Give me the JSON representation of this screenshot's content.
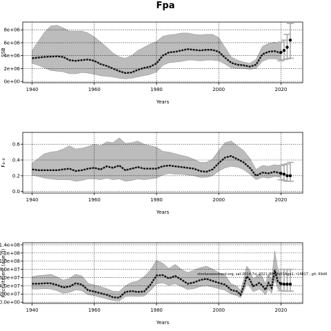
{
  "figure": {
    "title": "Fpa"
  },
  "chart_data": [
    {
      "type": "line",
      "name": "ssb",
      "xlabel": "Years",
      "ylabel": "SSB",
      "xlim": [
        1937,
        2027
      ],
      "ylim": [
        -200000,
        9200000
      ],
      "xticks": [
        1940,
        1960,
        1980,
        2000,
        2020
      ],
      "xtick_labels": [
        "1940",
        "1960",
        "1980",
        "2000",
        "2020"
      ],
      "yticks": [
        0,
        2000000,
        4000000,
        6000000,
        8000000
      ],
      "ytick_labels": [
        "0e+00",
        "2e+06",
        "4e+06",
        "6e+06",
        "8e+06"
      ],
      "grid": true,
      "x": [
        1940,
        1942,
        1944,
        1946,
        1948,
        1950,
        1952,
        1954,
        1956,
        1958,
        1960,
        1962,
        1964,
        1966,
        1968,
        1970,
        1972,
        1974,
        1976,
        1978,
        1980,
        1982,
        1984,
        1986,
        1988,
        1990,
        1992,
        1994,
        1996,
        1998,
        2000,
        2002,
        2004,
        2006,
        2008,
        2010,
        2012,
        2014,
        2016,
        2018,
        2020
      ],
      "y": [
        3600000,
        3700000,
        3800000,
        3850000,
        3900000,
        3800000,
        3300000,
        3200000,
        3300000,
        3400000,
        3200000,
        2700000,
        2400000,
        2000000,
        1600000,
        1300000,
        1400000,
        1800000,
        2100000,
        2300000,
        2800000,
        4000000,
        4500000,
        4600000,
        4800000,
        5000000,
        4900000,
        4800000,
        4900000,
        4900000,
        4600000,
        3700000,
        2900000,
        2600000,
        2500000,
        2300000,
        2600000,
        4200000,
        4600000,
        4700000,
        4400000
      ],
      "lower": [
        2800000,
        2500000,
        2100000,
        1700000,
        1600000,
        1500000,
        1200000,
        1200000,
        1400000,
        1300000,
        1100000,
        900000,
        800000,
        700000,
        500000,
        400000,
        500000,
        700000,
        900000,
        1100000,
        1500000,
        2500000,
        2900000,
        3000000,
        3100000,
        3300000,
        3300000,
        3200000,
        3300000,
        3300000,
        3200000,
        2700000,
        2100000,
        2000000,
        2000000,
        1900000,
        2000000,
        3100000,
        3500000,
        3500000,
        3300000
      ],
      "upper": [
        4800000,
        6200000,
        7600000,
        8600000,
        8700000,
        8300000,
        7800000,
        7800000,
        7800000,
        7500000,
        6900000,
        6100000,
        5300000,
        4400000,
        3800000,
        3600000,
        4000000,
        4800000,
        5300000,
        5800000,
        6200000,
        7000000,
        7200000,
        7300000,
        7500000,
        7500000,
        7300000,
        7200000,
        7300000,
        7300000,
        6800000,
        5300000,
        3800000,
        3300000,
        3000000,
        2800000,
        3400000,
        5400000,
        5900000,
        6100000,
        5800000
      ],
      "points": [
        {
          "x": 2020,
          "y": 4500000,
          "lo": 3200000,
          "hi": 6100000
        },
        {
          "x": 2021,
          "y": 4800000,
          "lo": 3400000,
          "hi": 6400000
        },
        {
          "x": 2022,
          "y": 5300000,
          "lo": 3500000,
          "hi": 7300000
        },
        {
          "x": 2023,
          "y": 6400000,
          "lo": 3600000,
          "hi": 9000000
        }
      ]
    },
    {
      "type": "line",
      "name": "f",
      "xlabel": "Years",
      "ylabel": "F₄₋₈",
      "xlim": [
        1937,
        2027
      ],
      "ylim": [
        -0.02,
        0.75
      ],
      "xticks": [
        1940,
        1960,
        1980,
        2000,
        2020
      ],
      "xtick_labels": [
        "1940",
        "1960",
        "1980",
        "2000",
        "2020"
      ],
      "yticks": [
        0.0,
        0.2,
        0.4,
        0.6
      ],
      "ytick_labels": [
        "0.0",
        "0.2",
        "0.4",
        "0.6"
      ],
      "grid": true,
      "x": [
        1940,
        1942,
        1944,
        1946,
        1948,
        1950,
        1952,
        1954,
        1956,
        1958,
        1960,
        1962,
        1964,
        1966,
        1968,
        1970,
        1972,
        1974,
        1976,
        1978,
        1980,
        1982,
        1984,
        1986,
        1988,
        1990,
        1992,
        1994,
        1996,
        1998,
        2000,
        2002,
        2004,
        2006,
        2008,
        2010,
        2012,
        2014,
        2016,
        2018,
        2020
      ],
      "y": [
        0.28,
        0.27,
        0.27,
        0.27,
        0.27,
        0.28,
        0.29,
        0.26,
        0.27,
        0.29,
        0.3,
        0.28,
        0.32,
        0.3,
        0.33,
        0.27,
        0.29,
        0.31,
        0.29,
        0.29,
        0.29,
        0.32,
        0.33,
        0.32,
        0.31,
        0.3,
        0.29,
        0.26,
        0.25,
        0.28,
        0.36,
        0.43,
        0.45,
        0.41,
        0.37,
        0.3,
        0.2,
        0.24,
        0.23,
        0.25,
        0.23
      ],
      "lower": [
        0.21,
        0.19,
        0.17,
        0.16,
        0.15,
        0.15,
        0.15,
        0.13,
        0.14,
        0.16,
        0.16,
        0.15,
        0.17,
        0.15,
        0.16,
        0.13,
        0.14,
        0.16,
        0.15,
        0.16,
        0.17,
        0.21,
        0.23,
        0.22,
        0.22,
        0.21,
        0.2,
        0.18,
        0.18,
        0.2,
        0.26,
        0.3,
        0.32,
        0.31,
        0.28,
        0.22,
        0.15,
        0.18,
        0.17,
        0.19,
        0.18
      ],
      "upper": [
        0.36,
        0.42,
        0.48,
        0.5,
        0.51,
        0.54,
        0.58,
        0.54,
        0.55,
        0.57,
        0.6,
        0.58,
        0.63,
        0.62,
        0.68,
        0.61,
        0.62,
        0.64,
        0.6,
        0.58,
        0.56,
        0.51,
        0.5,
        0.48,
        0.46,
        0.44,
        0.41,
        0.37,
        0.37,
        0.41,
        0.52,
        0.62,
        0.64,
        0.58,
        0.52,
        0.42,
        0.28,
        0.33,
        0.32,
        0.34,
        0.32
      ],
      "points": [
        {
          "x": 2020,
          "y": 0.23,
          "lo": 0.15,
          "hi": 0.33
        },
        {
          "x": 2021,
          "y": 0.22,
          "lo": 0.14,
          "hi": 0.34
        },
        {
          "x": 2022,
          "y": 0.2,
          "lo": 0.13,
          "hi": 0.35
        },
        {
          "x": 2023,
          "y": 0.2,
          "lo": 0.13,
          "hi": 0.37
        }
      ]
    },
    {
      "type": "line",
      "name": "recruitment",
      "xlabel": "Years",
      "ylabel": "Recruitment (age 0)",
      "xlim": [
        1937,
        2027
      ],
      "ylim": [
        -3000000,
        145000000
      ],
      "xticks": [
        1940,
        1960,
        1980,
        2000,
        2020
      ],
      "xtick_labels": [
        "1940",
        "1960",
        "1980",
        "2000",
        "2020"
      ],
      "yticks": [
        0,
        20000000,
        40000000,
        60000000,
        80000000,
        100000000,
        120000000,
        140000000
      ],
      "ytick_labels": [
        "0.0e+00",
        "2.0e+07",
        "4.0e+07",
        "6.0e+07",
        "8.0e+07",
        "1.0e+08",
        "1.2e+08",
        "1.4e+08"
      ],
      "grid": true,
      "annotation": "stockassessment.org, sat 2014-7d, 2021_BP_Mv01Age1, r14817 , git: 69d9",
      "x": [
        1940,
        1942,
        1944,
        1946,
        1948,
        1950,
        1952,
        1954,
        1956,
        1958,
        1960,
        1962,
        1964,
        1966,
        1968,
        1970,
        1972,
        1974,
        1976,
        1978,
        1980,
        1982,
        1984,
        1986,
        1988,
        1990,
        1992,
        1994,
        1996,
        1998,
        2000,
        2002,
        2004,
        2006,
        2007,
        2008,
        2009,
        2010,
        2011,
        2012,
        2013,
        2014,
        2015,
        2016,
        2017,
        2018,
        2019,
        2020
      ],
      "y": [
        45000000,
        45000000,
        46000000,
        46000000,
        42000000,
        36000000,
        38000000,
        46000000,
        43000000,
        29000000,
        26000000,
        22000000,
        18000000,
        12000000,
        11000000,
        25000000,
        27000000,
        25000000,
        26000000,
        42000000,
        65000000,
        66000000,
        58000000,
        64000000,
        55000000,
        45000000,
        48000000,
        54000000,
        57000000,
        52000000,
        47000000,
        43000000,
        30000000,
        26000000,
        18000000,
        38000000,
        63000000,
        55000000,
        39000000,
        42000000,
        47000000,
        41000000,
        30000000,
        47000000,
        35000000,
        78000000,
        50000000,
        45000000
      ],
      "lower": [
        32000000,
        32000000,
        33000000,
        32000000,
        28000000,
        22000000,
        24000000,
        30000000,
        28000000,
        18000000,
        16000000,
        12000000,
        8000000,
        4000000,
        3000000,
        14000000,
        15000000,
        14000000,
        15000000,
        28000000,
        45000000,
        47000000,
        41000000,
        45000000,
        38000000,
        31000000,
        33000000,
        38000000,
        40000000,
        37000000,
        33000000,
        29000000,
        20000000,
        16000000,
        11000000,
        26000000,
        45000000,
        38000000,
        26000000,
        28000000,
        32000000,
        27000000,
        19000000,
        32000000,
        22000000,
        55000000,
        33000000,
        28000000
      ],
      "upper": [
        62000000,
        65000000,
        66000000,
        68000000,
        62000000,
        54000000,
        58000000,
        68000000,
        64000000,
        46000000,
        42000000,
        38000000,
        33000000,
        27000000,
        26000000,
        40000000,
        48000000,
        52000000,
        62000000,
        78000000,
        102000000,
        95000000,
        82000000,
        92000000,
        80000000,
        72000000,
        78000000,
        84000000,
        88000000,
        81000000,
        72000000,
        66000000,
        45000000,
        38000000,
        28000000,
        55000000,
        88000000,
        78000000,
        57000000,
        62000000,
        70000000,
        62000000,
        45000000,
        70000000,
        55000000,
        125000000,
        80000000,
        68000000
      ],
      "points": [
        {
          "x": 2020,
          "y": 45000000,
          "lo": 28000000,
          "hi": 80000000
        },
        {
          "x": 2021,
          "y": 44000000,
          "lo": 27000000,
          "hi": 80000000
        },
        {
          "x": 2022,
          "y": 44000000,
          "lo": 27000000,
          "hi": 80000000
        },
        {
          "x": 2023,
          "y": 44000000,
          "lo": 27000000,
          "hi": 80000000
        }
      ]
    }
  ]
}
